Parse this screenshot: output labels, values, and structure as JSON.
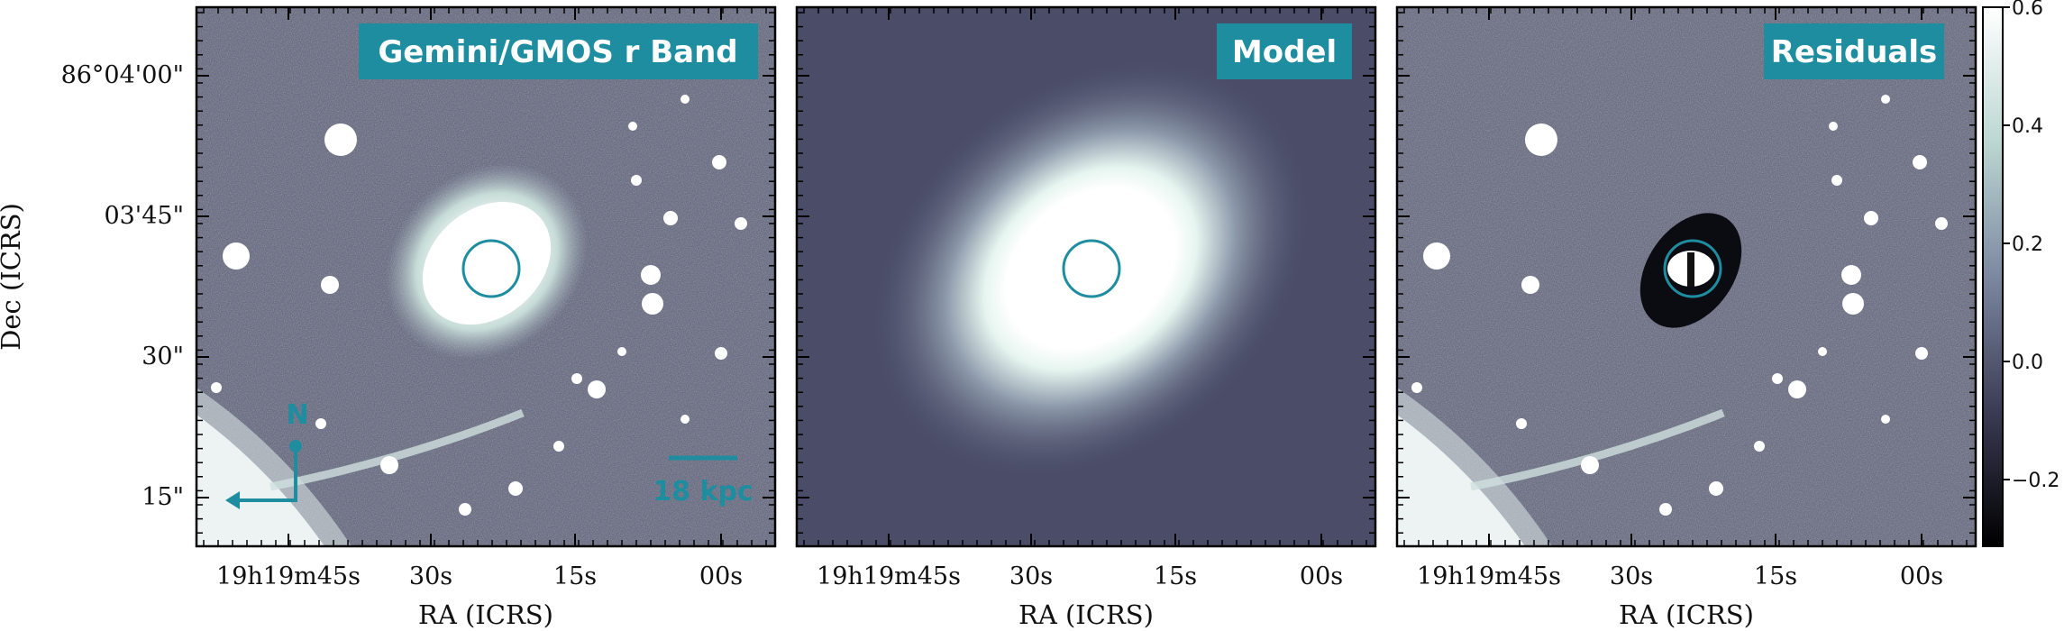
{
  "panels": [
    {
      "title": "Gemini/GMOS r Band",
      "kind": "data"
    },
    {
      "title": "Model",
      "kind": "model"
    },
    {
      "title": "Residuals",
      "kind": "residual"
    }
  ],
  "ra_ticks": [
    "19h19m45s",
    "30s",
    "15s",
    "00s"
  ],
  "ra_label": "RA (ICRS)",
  "dec_ticks": [
    "86°04'00\"",
    "03'45\"",
    "30\"",
    "15\""
  ],
  "dec_label": "Dec (ICRS)",
  "colorbar": {
    "ticks": [
      "0.6",
      "0.4",
      "0.2",
      "0.0",
      "−0.2"
    ],
    "range": [
      -0.3,
      0.6
    ]
  },
  "annotations": {
    "scale_bar": "18 kpc",
    "compass_north": "N"
  },
  "colors": {
    "accent": "#1f8da0",
    "background_noise": "#5a5e78",
    "model_background": "#4b4d68"
  }
}
